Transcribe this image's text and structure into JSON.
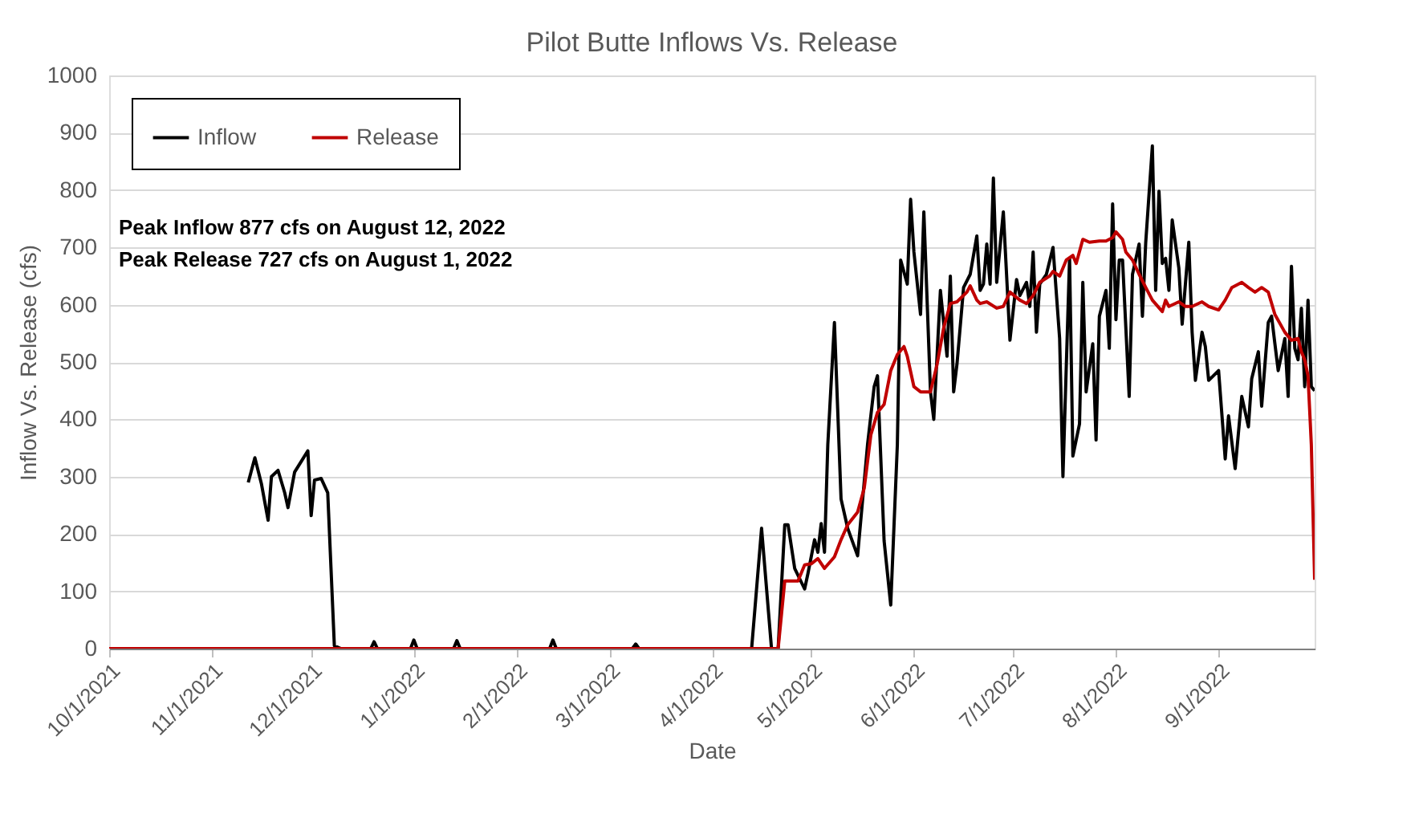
{
  "chart_data": {
    "type": "line",
    "title": "Pilot Butte Inflows Vs. Release",
    "xlabel": "Date",
    "ylabel": "Inflow Vs. Release (cfs)",
    "xlim": [
      "2021-10-01",
      "2022-09-30"
    ],
    "xticks": [
      {
        "value": "2021-10-01",
        "label": "10/1/2021"
      },
      {
        "value": "2021-11-01",
        "label": "11/1/2021"
      },
      {
        "value": "2021-12-01",
        "label": "12/1/2021"
      },
      {
        "value": "2022-01-01",
        "label": "1/1/2022"
      },
      {
        "value": "2022-02-01",
        "label": "2/1/2022"
      },
      {
        "value": "2022-03-01",
        "label": "3/1/2022"
      },
      {
        "value": "2022-04-01",
        "label": "4/1/2022"
      },
      {
        "value": "2022-05-01",
        "label": "5/1/2022"
      },
      {
        "value": "2022-06-01",
        "label": "6/1/2022"
      },
      {
        "value": "2022-07-01",
        "label": "7/1/2022"
      },
      {
        "value": "2022-08-01",
        "label": "8/1/2022"
      },
      {
        "value": "2022-09-01",
        "label": "9/1/2022"
      }
    ],
    "ylim": [
      0,
      1000
    ],
    "yticks": [
      0,
      100,
      200,
      300,
      400,
      500,
      600,
      700,
      800,
      900,
      1000
    ],
    "grid": "y",
    "legend": "top left",
    "line_style": "solid",
    "marker": "none",
    "annotations": [
      "Peak Inflow 877 cfs on August 12, 2022",
      "Peak Release 727 cfs on August 1, 2022"
    ],
    "series": [
      {
        "name": "Inflow",
        "color": "#000000",
        "x": [
          "2021-11-12",
          "2021-11-14",
          "2021-11-16",
          "2021-11-18",
          "2021-11-19",
          "2021-11-21",
          "2021-11-23",
          "2021-11-24",
          "2021-11-26",
          "2021-11-30",
          "2021-12-01",
          "2021-12-02",
          "2021-12-04",
          "2021-12-06",
          "2021-12-08",
          "2021-12-10",
          "2021-12-19",
          "2021-12-20",
          "2021-12-21",
          "2021-12-31",
          "2022-01-01",
          "2022-01-02",
          "2022-01-13",
          "2022-01-14",
          "2022-01-15",
          "2022-02-11",
          "2022-02-12",
          "2022-02-13",
          "2022-03-08",
          "2022-03-09",
          "2022-03-10",
          "2022-04-13",
          "2022-04-16",
          "2022-04-19",
          "2022-04-21",
          "2022-04-23",
          "2022-04-24",
          "2022-04-26",
          "2022-04-29",
          "2022-04-30",
          "2022-05-02",
          "2022-05-03",
          "2022-05-04",
          "2022-05-05",
          "2022-05-06",
          "2022-05-08",
          "2022-05-10",
          "2022-05-12",
          "2022-05-15",
          "2022-05-18",
          "2022-05-20",
          "2022-05-21",
          "2022-05-23",
          "2022-05-25",
          "2022-05-27",
          "2022-05-28",
          "2022-05-30",
          "2022-05-31",
          "2022-06-01",
          "2022-06-03",
          "2022-06-04",
          "2022-06-06",
          "2022-06-07",
          "2022-06-09",
          "2022-06-11",
          "2022-06-12",
          "2022-06-13",
          "2022-06-14",
          "2022-06-16",
          "2022-06-18",
          "2022-06-20",
          "2022-06-21",
          "2022-06-22",
          "2022-06-23",
          "2022-06-24",
          "2022-06-25",
          "2022-06-26",
          "2022-06-28",
          "2022-06-30",
          "2022-07-02",
          "2022-07-03",
          "2022-07-05",
          "2022-07-06",
          "2022-07-07",
          "2022-07-08",
          "2022-07-09",
          "2022-07-11",
          "2022-07-13",
          "2022-07-15",
          "2022-07-16",
          "2022-07-18",
          "2022-07-19",
          "2022-07-21",
          "2022-07-22",
          "2022-07-23",
          "2022-07-25",
          "2022-07-26",
          "2022-07-27",
          "2022-07-29",
          "2022-07-30",
          "2022-07-31",
          "2022-08-01",
          "2022-08-02",
          "2022-08-03",
          "2022-08-05",
          "2022-08-06",
          "2022-08-08",
          "2022-08-09",
          "2022-08-10",
          "2022-08-12",
          "2022-08-13",
          "2022-08-14",
          "2022-08-15",
          "2022-08-16",
          "2022-08-17",
          "2022-08-18",
          "2022-08-20",
          "2022-08-21",
          "2022-08-23",
          "2022-08-24",
          "2022-08-25",
          "2022-08-27",
          "2022-08-28",
          "2022-08-29",
          "2022-09-01",
          "2022-09-03",
          "2022-09-04",
          "2022-09-06",
          "2022-09-08",
          "2022-09-10",
          "2022-09-11",
          "2022-09-13",
          "2022-09-14",
          "2022-09-16",
          "2022-09-17",
          "2022-09-18",
          "2022-09-19",
          "2022-09-21",
          "2022-09-22",
          "2022-09-23",
          "2022-09-24",
          "2022-09-25",
          "2022-09-26",
          "2022-09-27",
          "2022-09-28",
          "2022-09-29",
          "2022-09-30"
        ],
        "values": [
          290,
          333,
          287,
          224,
          300,
          311,
          272,
          246,
          308,
          345,
          232,
          294,
          297,
          272,
          5,
          0,
          0,
          12,
          0,
          0,
          15,
          0,
          0,
          14,
          0,
          0,
          15,
          0,
          0,
          8,
          0,
          0,
          210,
          0,
          0,
          216,
          216,
          140,
          104,
          131,
          190,
          168,
          218,
          168,
          356,
          569,
          261,
          210,
          162,
          356,
          457,
          476,
          188,
          76,
          356,
          678,
          636,
          784,
          692,
          583,
          762,
          448,
          400,
          625,
          510,
          650,
          448,
          496,
          630,
          653,
          720,
          625,
          636,
          706,
          636,
          821,
          639,
          762,
          538,
          644,
          616,
          639,
          597,
          692,
          552,
          636,
          653,
          700,
          541,
          300,
          681,
          336,
          392,
          639,
          448,
          532,
          364,
          580,
          625,
          524,
          776,
          574,
          678,
          678,
          440,
          653,
          706,
          580,
          709,
          877,
          625,
          798,
          672,
          681,
          625,
          748,
          664,
          566,
          709,
          552,
          468,
          552,
          527,
          468,
          485,
          331,
          406,
          314,
          440,
          387,
          471,
          518,
          423,
          569,
          580,
          532,
          485,
          541,
          440,
          667,
          524,
          504,
          594,
          457,
          608,
          457,
          450
        ]
      },
      {
        "name": "Release",
        "color": "#c00000",
        "x": [
          "2021-10-01",
          "2022-04-21",
          "2022-04-23",
          "2022-04-27",
          "2022-04-29",
          "2022-05-01",
          "2022-05-03",
          "2022-05-05",
          "2022-05-08",
          "2022-05-10",
          "2022-05-12",
          "2022-05-15",
          "2022-05-17",
          "2022-05-19",
          "2022-05-21",
          "2022-05-23",
          "2022-05-25",
          "2022-05-27",
          "2022-05-29",
          "2022-05-30",
          "2022-06-01",
          "2022-06-03",
          "2022-06-06",
          "2022-06-08",
          "2022-06-10",
          "2022-06-12",
          "2022-06-14",
          "2022-06-17",
          "2022-06-18",
          "2022-06-20",
          "2022-06-21",
          "2022-06-23",
          "2022-06-26",
          "2022-06-28",
          "2022-06-30",
          "2022-07-03",
          "2022-07-05",
          "2022-07-07",
          "2022-07-09",
          "2022-07-12",
          "2022-07-13",
          "2022-07-15",
          "2022-07-17",
          "2022-07-19",
          "2022-07-20",
          "2022-07-22",
          "2022-07-24",
          "2022-07-27",
          "2022-07-29",
          "2022-07-31",
          "2022-08-01",
          "2022-08-03",
          "2022-08-04",
          "2022-08-06",
          "2022-08-08",
          "2022-08-10",
          "2022-08-12",
          "2022-08-15",
          "2022-08-16",
          "2022-08-17",
          "2022-08-20",
          "2022-08-22",
          "2022-08-24",
          "2022-08-27",
          "2022-08-29",
          "2022-09-01",
          "2022-09-03",
          "2022-09-05",
          "2022-09-08",
          "2022-09-10",
          "2022-09-12",
          "2022-09-14",
          "2022-09-16",
          "2022-09-18",
          "2022-09-21",
          "2022-09-23",
          "2022-09-25",
          "2022-09-26",
          "2022-09-27",
          "2022-09-28",
          "2022-09-29",
          "2022-09-30"
        ],
        "values": [
          0,
          0,
          118,
          118,
          146,
          148,
          157,
          140,
          160,
          190,
          216,
          238,
          280,
          373,
          412,
          426,
          485,
          513,
          527,
          510,
          457,
          448,
          448,
          496,
          560,
          602,
          605,
          622,
          633,
          608,
          602,
          605,
          594,
          597,
          622,
          608,
          602,
          616,
          639,
          650,
          658,
          650,
          678,
          686,
          672,
          714,
          709,
          711,
          711,
          717,
          727,
          714,
          692,
          678,
          653,
          630,
          608,
          588,
          608,
          597,
          605,
          597,
          597,
          605,
          597,
          591,
          608,
          630,
          639,
          630,
          622,
          630,
          622,
          583,
          552,
          538,
          541,
          518,
          504,
          476,
          356,
          120
        ]
      }
    ]
  }
}
